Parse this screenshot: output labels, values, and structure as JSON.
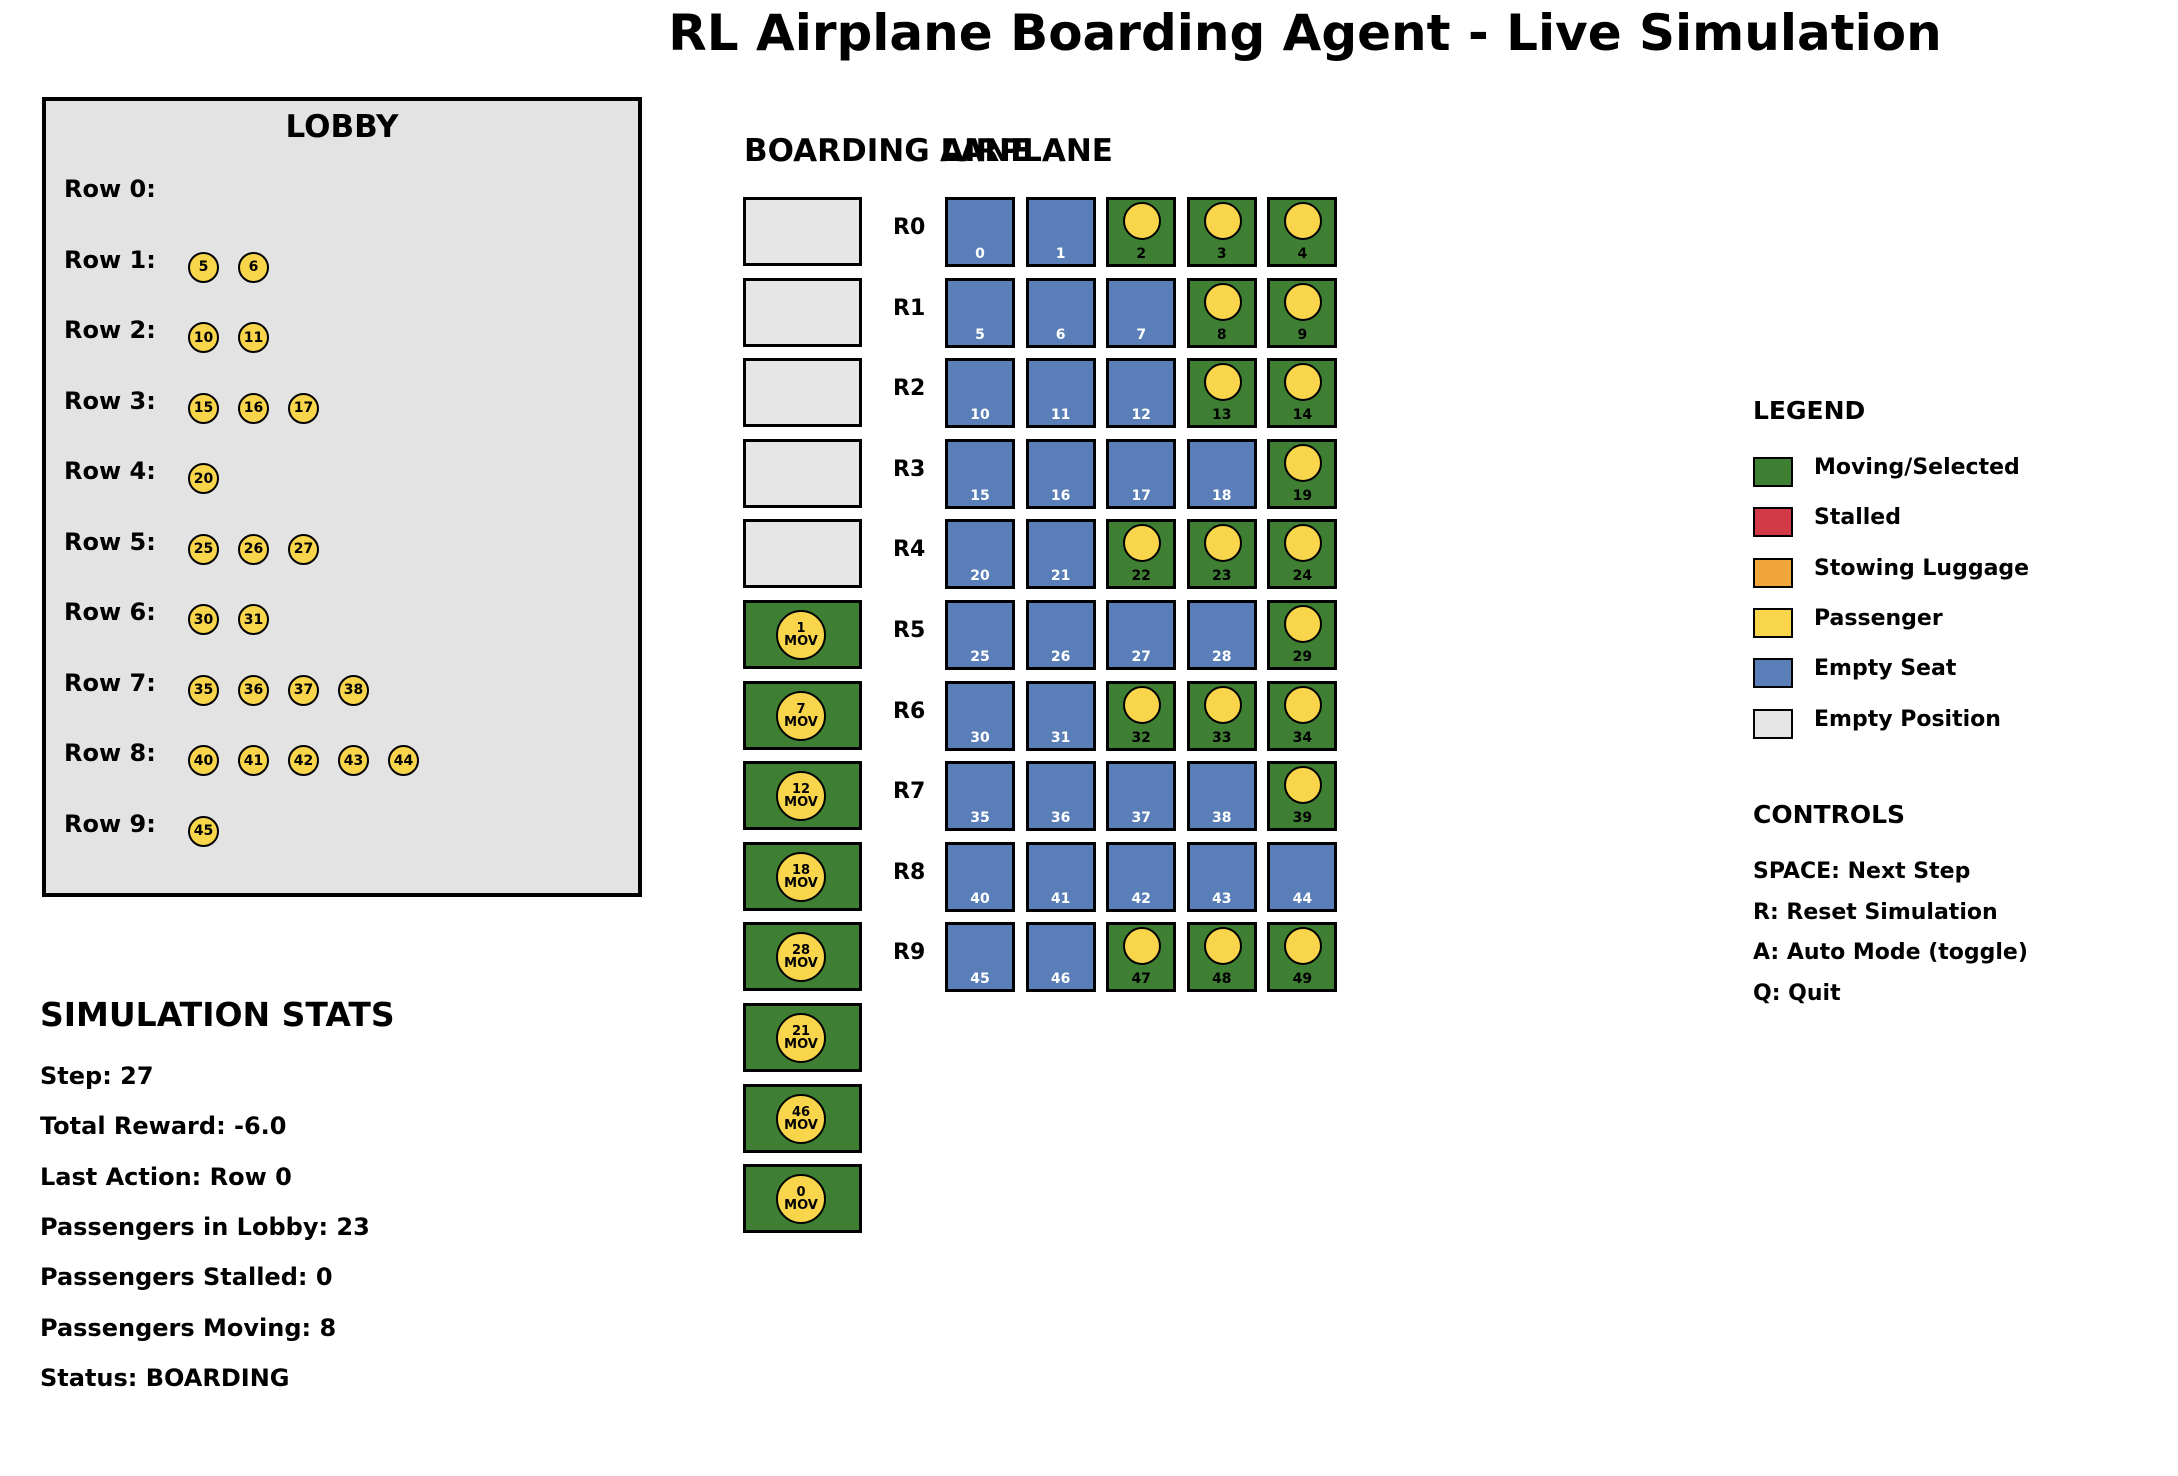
{
  "title": "RL Airplane Boarding Agent - Live Simulation",
  "colors": {
    "moving": "#3f7f34",
    "stalled": "#d23a48",
    "stowing": "#f0a63a",
    "passenger": "#f8d54a",
    "empty_seat": "#5a7fb8",
    "empty_position": "#e6e6e6"
  },
  "lobby": {
    "title": "LOBBY",
    "rows": [
      {
        "label": "Row 0:",
        "passengers": []
      },
      {
        "label": "Row 1:",
        "passengers": [
          "5",
          "6"
        ]
      },
      {
        "label": "Row 2:",
        "passengers": [
          "10",
          "11"
        ]
      },
      {
        "label": "Row 3:",
        "passengers": [
          "15",
          "16",
          "17"
        ]
      },
      {
        "label": "Row 4:",
        "passengers": [
          "20"
        ]
      },
      {
        "label": "Row 5:",
        "passengers": [
          "25",
          "26",
          "27"
        ]
      },
      {
        "label": "Row 6:",
        "passengers": [
          "30",
          "31"
        ]
      },
      {
        "label": "Row 7:",
        "passengers": [
          "35",
          "36",
          "37",
          "38"
        ]
      },
      {
        "label": "Row 8:",
        "passengers": [
          "40",
          "41",
          "42",
          "43",
          "44"
        ]
      },
      {
        "label": "Row 9:",
        "passengers": [
          "45"
        ]
      }
    ]
  },
  "stats": {
    "heading": "SIMULATION STATS",
    "lines": [
      "Step: 27",
      "Total Reward: -6.0",
      "Last Action: Row 0",
      "Passengers in Lobby: 23",
      "Passengers Stalled: 0",
      "Passengers Moving: 8",
      "Status: BOARDING"
    ]
  },
  "boarding_lane": {
    "heading": "BOARDING LANE",
    "cells": [
      {
        "state": "empty"
      },
      {
        "state": "empty"
      },
      {
        "state": "empty"
      },
      {
        "state": "empty"
      },
      {
        "state": "empty"
      },
      {
        "state": "moving",
        "passenger": "1",
        "tag": "MOV"
      },
      {
        "state": "moving",
        "passenger": "7",
        "tag": "MOV"
      },
      {
        "state": "moving",
        "passenger": "12",
        "tag": "MOV"
      },
      {
        "state": "moving",
        "passenger": "18",
        "tag": "MOV"
      },
      {
        "state": "moving",
        "passenger": "28",
        "tag": "MOV"
      },
      {
        "state": "moving",
        "passenger": "21",
        "tag": "MOV"
      },
      {
        "state": "moving",
        "passenger": "46",
        "tag": "MOV"
      },
      {
        "state": "moving",
        "passenger": "0",
        "tag": "MOV"
      }
    ]
  },
  "airplane": {
    "heading": "AIRPLANE",
    "rows": [
      {
        "label": "R0",
        "occupied": [
          false,
          false,
          true,
          true,
          true
        ]
      },
      {
        "label": "R1",
        "occupied": [
          false,
          false,
          false,
          true,
          true
        ]
      },
      {
        "label": "R2",
        "occupied": [
          false,
          false,
          false,
          true,
          true
        ]
      },
      {
        "label": "R3",
        "occupied": [
          false,
          false,
          false,
          false,
          true
        ]
      },
      {
        "label": "R4",
        "occupied": [
          false,
          false,
          true,
          true,
          true
        ]
      },
      {
        "label": "R5",
        "occupied": [
          false,
          false,
          false,
          false,
          true
        ]
      },
      {
        "label": "R6",
        "occupied": [
          false,
          false,
          true,
          true,
          true
        ]
      },
      {
        "label": "R7",
        "occupied": [
          false,
          false,
          false,
          false,
          true
        ]
      },
      {
        "label": "R8",
        "occupied": [
          false,
          false,
          false,
          false,
          false
        ]
      },
      {
        "label": "R9",
        "occupied": [
          false,
          false,
          true,
          true,
          true
        ]
      }
    ]
  },
  "legend": {
    "heading": "LEGEND",
    "items": [
      {
        "label": "Moving/Selected",
        "color": "#3f7f34"
      },
      {
        "label": "Stalled",
        "color": "#d23a48"
      },
      {
        "label": "Stowing Luggage",
        "color": "#f0a63a"
      },
      {
        "label": "Passenger",
        "color": "#f8d54a"
      },
      {
        "label": "Empty Seat",
        "color": "#5a7fb8"
      },
      {
        "label": "Empty Position",
        "color": "#e6e6e6"
      }
    ]
  },
  "controls": {
    "heading": "CONTROLS",
    "lines": [
      "SPACE: Next Step",
      "R: Reset Simulation",
      "A: Auto Mode (toggle)",
      "Q: Quit"
    ]
  }
}
